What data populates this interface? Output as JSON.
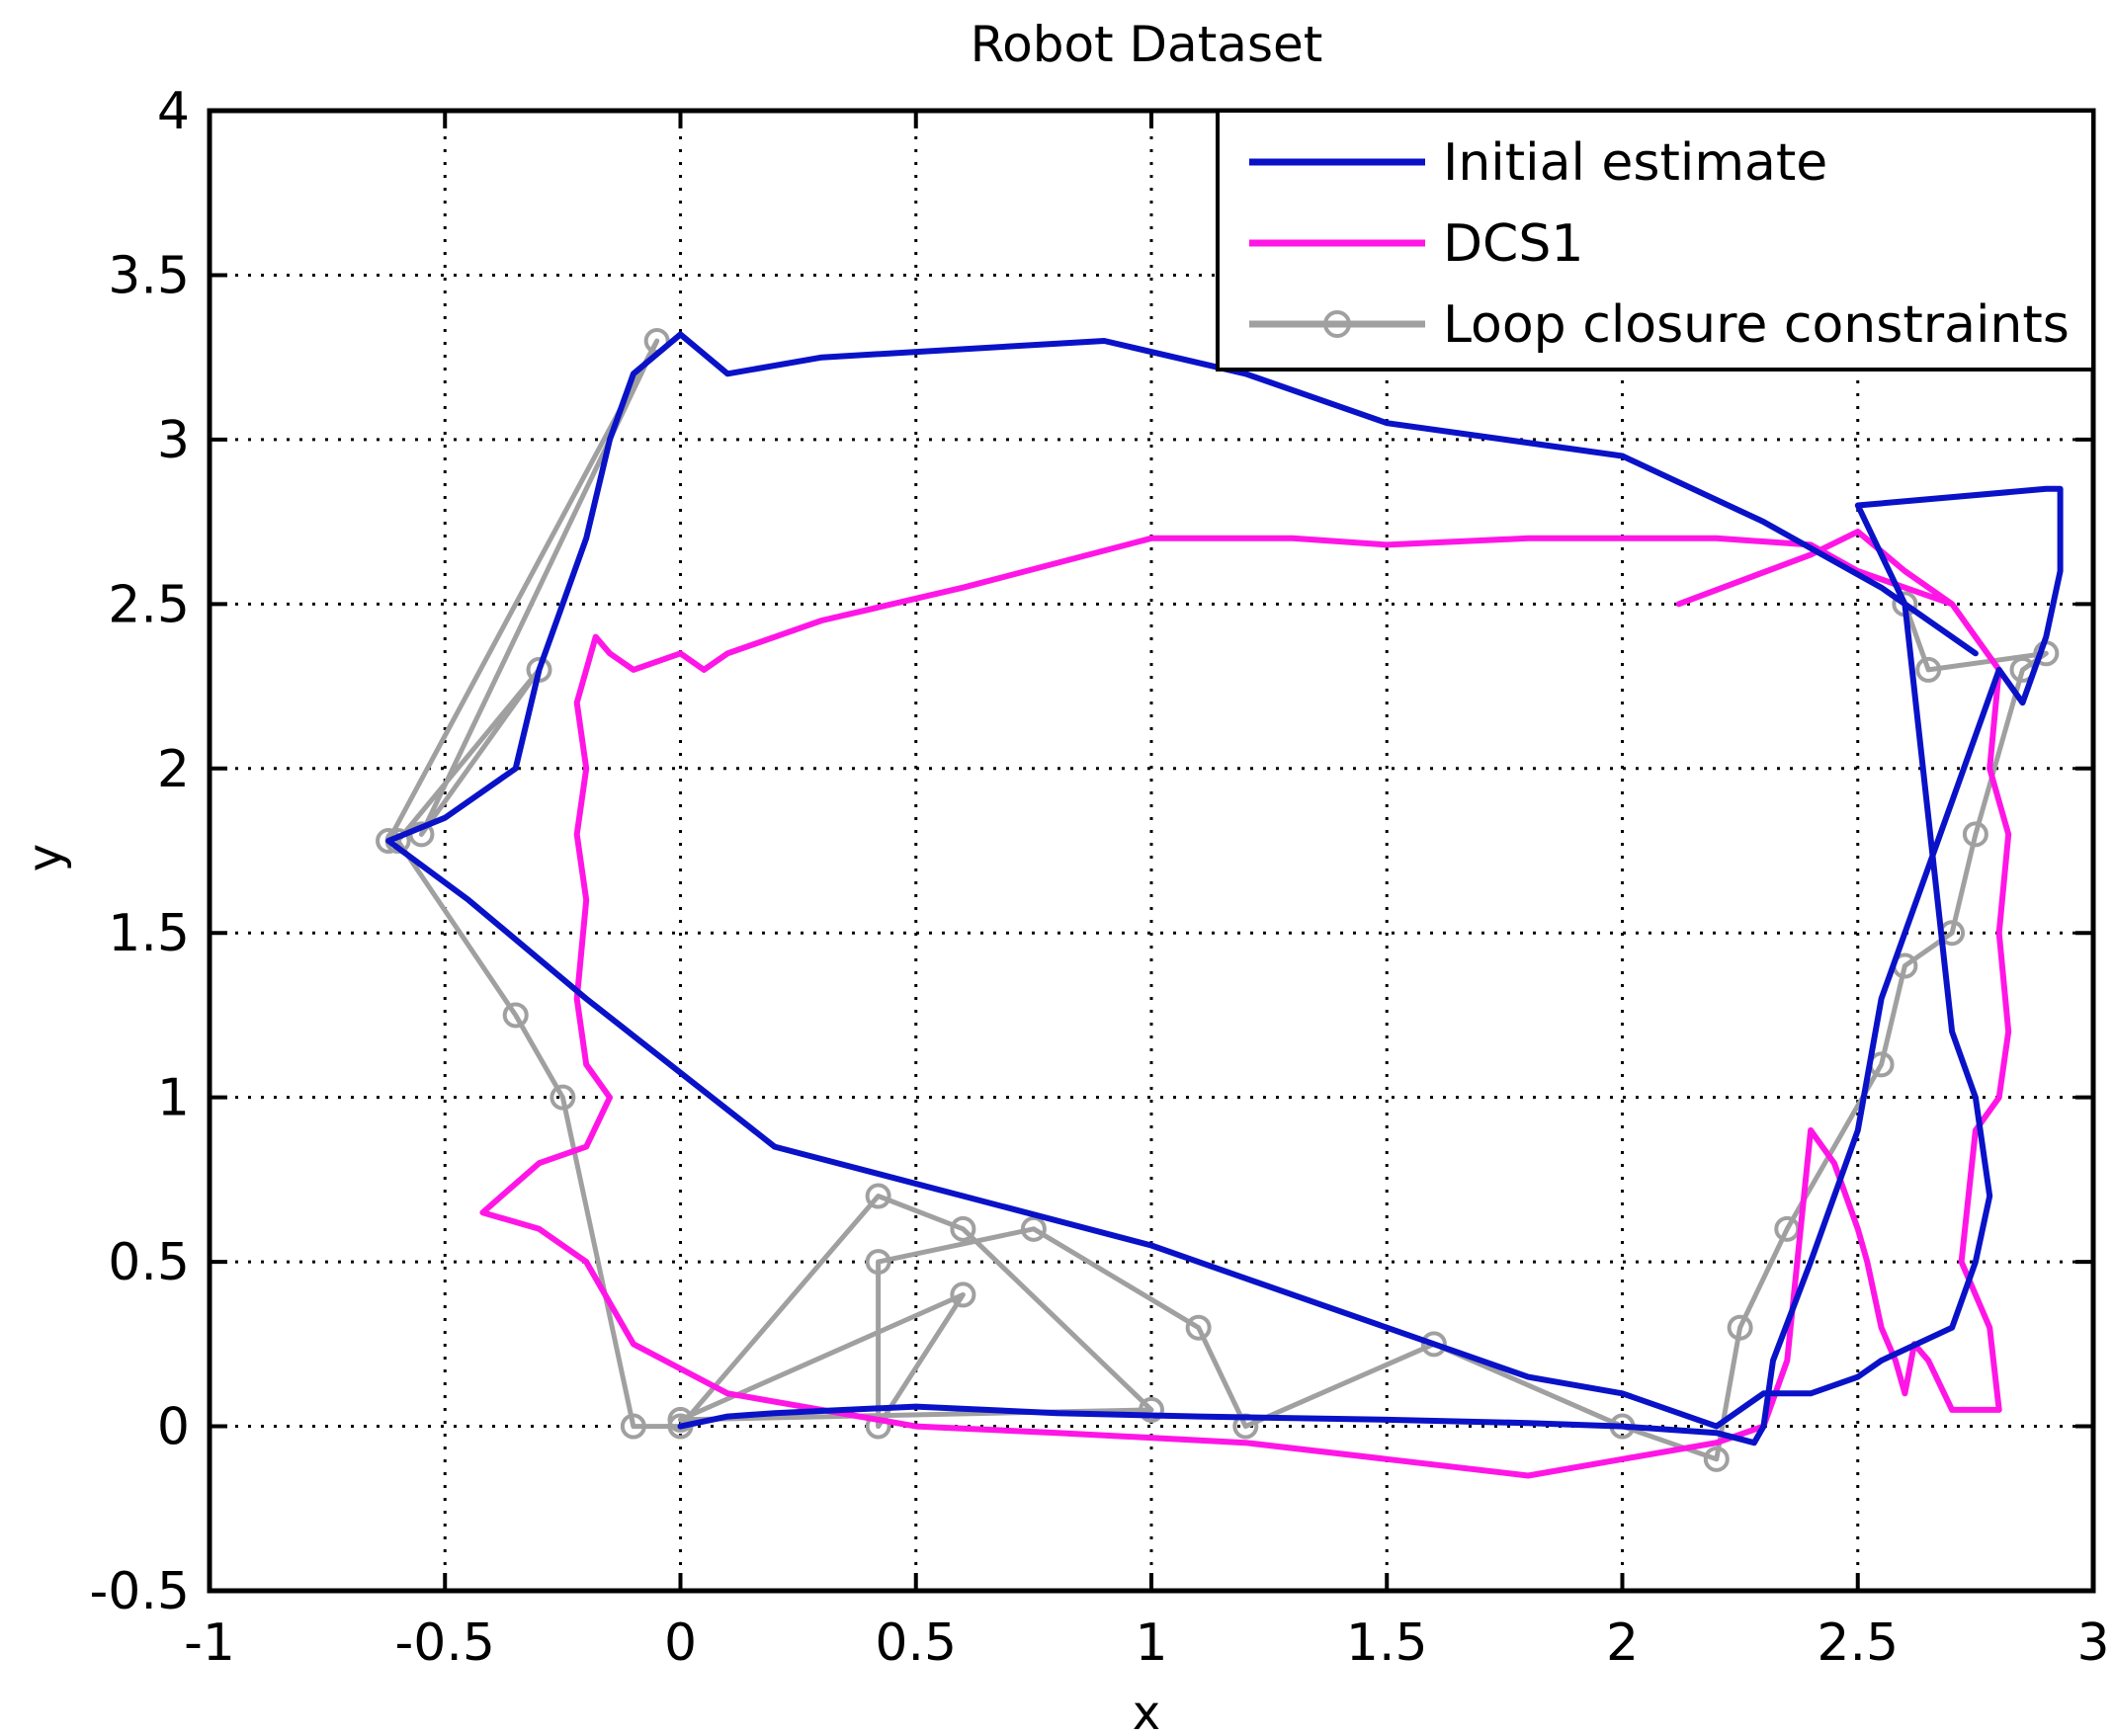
{
  "chart_data": {
    "type": "line",
    "title": "Robot Dataset",
    "xlabel": "x",
    "ylabel": "y",
    "xlim": [
      -1,
      3
    ],
    "ylim": [
      -0.5,
      4
    ],
    "xticks": [
      -1,
      -0.5,
      0,
      0.5,
      1,
      1.5,
      2,
      2.5,
      3
    ],
    "yticks": [
      -0.5,
      0,
      0.5,
      1,
      1.5,
      2,
      2.5,
      3,
      3.5,
      4
    ],
    "xtick_labels": [
      "-1",
      "-0.5",
      "0",
      "0.5",
      "1",
      "1.5",
      "2",
      "2.5",
      "3"
    ],
    "ytick_labels": [
      "-0.5",
      "0",
      "0.5",
      "1",
      "1.5",
      "2",
      "2.5",
      "3",
      "3.5",
      "4"
    ],
    "grid": true,
    "legend_position": "top-right",
    "series": [
      {
        "name": "Initial estimate",
        "color": "#0a12c8",
        "marker": "none",
        "x": [
          0.0,
          0.1,
          0.2,
          0.5,
          0.8,
          1.1,
          1.5,
          1.8,
          2.0,
          2.2,
          2.28,
          2.3,
          2.32,
          2.4,
          2.5,
          2.55,
          2.6,
          2.7,
          2.75,
          2.8,
          2.85,
          2.9,
          2.93,
          2.93,
          2.9,
          2.5,
          2.6,
          2.7,
          2.75,
          2.78,
          2.75,
          2.7,
          2.55,
          2.5,
          2.4,
          2.3,
          2.2,
          2.0,
          1.8,
          1.5,
          1.2,
          1.0,
          0.6,
          0.2,
          -0.2,
          -0.45,
          -0.62,
          -0.5,
          -0.35,
          -0.3,
          -0.2,
          -0.15,
          -0.1,
          0.0,
          0.1,
          0.3,
          0.9,
          1.2,
          1.5,
          2.0,
          2.3,
          2.55,
          2.75
        ],
        "y": [
          0.0,
          0.03,
          0.04,
          0.06,
          0.04,
          0.03,
          0.02,
          0.01,
          0.0,
          -0.02,
          -0.05,
          0.0,
          0.2,
          0.5,
          0.9,
          1.3,
          1.5,
          1.9,
          2.1,
          2.3,
          2.2,
          2.4,
          2.6,
          2.85,
          2.85,
          2.8,
          2.5,
          1.2,
          1.0,
          0.7,
          0.5,
          0.3,
          0.2,
          0.15,
          0.1,
          0.1,
          0.0,
          0.1,
          0.15,
          0.3,
          0.45,
          0.55,
          0.7,
          0.85,
          1.3,
          1.6,
          1.78,
          1.85,
          2.0,
          2.3,
          2.7,
          3.0,
          3.2,
          3.32,
          3.2,
          3.25,
          3.3,
          3.2,
          3.05,
          2.95,
          2.75,
          2.55,
          2.35
        ]
      },
      {
        "name": "DCS1",
        "color": "#ff16e6",
        "marker": "none",
        "x": [
          2.12,
          2.4,
          2.5,
          2.6,
          2.7,
          2.75,
          2.8,
          2.78,
          2.82,
          2.8,
          2.82,
          2.8,
          2.75,
          2.72,
          2.78,
          2.8,
          2.75,
          2.7,
          2.65,
          2.62,
          2.6,
          2.58,
          2.55,
          2.52,
          2.5,
          2.45,
          2.4,
          2.35,
          2.3,
          2.2,
          2.0,
          1.8,
          1.5,
          1.2,
          0.8,
          0.5,
          0.3,
          0.1,
          -0.1,
          -0.2,
          -0.3,
          -0.42,
          -0.3,
          -0.2,
          -0.15,
          -0.2,
          -0.22,
          -0.2,
          -0.22,
          -0.2,
          -0.22,
          -0.18,
          -0.15,
          -0.1,
          0.0,
          0.05,
          0.1,
          0.3,
          0.6,
          1.0,
          1.3,
          1.5,
          1.8,
          2.0,
          2.2,
          2.4,
          2.5,
          2.6,
          2.7
        ],
        "y": [
          2.5,
          2.65,
          2.72,
          2.6,
          2.5,
          2.4,
          2.3,
          2.0,
          1.8,
          1.5,
          1.2,
          1.0,
          0.9,
          0.5,
          0.3,
          0.05,
          0.05,
          0.05,
          0.2,
          0.25,
          0.1,
          0.2,
          0.3,
          0.5,
          0.6,
          0.8,
          0.9,
          0.2,
          0.0,
          -0.05,
          -0.1,
          -0.15,
          -0.1,
          -0.05,
          -0.02,
          0.0,
          0.05,
          0.1,
          0.25,
          0.5,
          0.6,
          0.65,
          0.8,
          0.85,
          1.0,
          1.1,
          1.3,
          1.6,
          1.8,
          2.0,
          2.2,
          2.4,
          2.35,
          2.3,
          2.35,
          2.3,
          2.35,
          2.45,
          2.55,
          2.7,
          2.7,
          2.68,
          2.7,
          2.7,
          2.7,
          2.68,
          2.6,
          2.55,
          2.5
        ]
      },
      {
        "name": "Loop closure constraints",
        "color": "#a0a0a0",
        "marker": "circle",
        "x": [
          -0.62,
          -0.05,
          -0.55,
          -0.3,
          -0.6,
          -0.35,
          -0.25,
          -0.1,
          0.0,
          0.42,
          0.6,
          1.0,
          0.0,
          0.6,
          0.42,
          0.42,
          0.75,
          1.1,
          1.2,
          1.6,
          2.0,
          2.2,
          2.25,
          2.35,
          2.55,
          2.6,
          2.7,
          2.75,
          2.85,
          2.9,
          2.65,
          2.6
        ],
        "y": [
          1.78,
          3.3,
          1.8,
          2.3,
          1.78,
          1.25,
          1.0,
          0.0,
          0.0,
          0.7,
          0.6,
          0.05,
          0.02,
          0.4,
          0.0,
          0.5,
          0.6,
          0.3,
          0.0,
          0.25,
          0.0,
          -0.1,
          0.3,
          0.6,
          1.1,
          1.4,
          1.5,
          1.8,
          2.3,
          2.35,
          2.3,
          2.5
        ]
      }
    ]
  }
}
